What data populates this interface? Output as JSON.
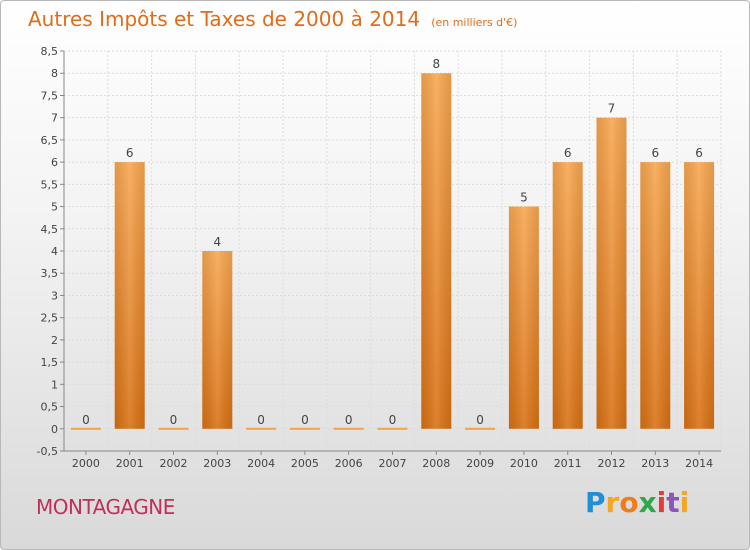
{
  "chart_data": {
    "type": "bar",
    "title": "Autres Impôts et Taxes de 2000 à 2014",
    "subtitle": "(en milliers d'€)",
    "categories": [
      "2000",
      "2001",
      "2002",
      "2003",
      "2004",
      "2005",
      "2006",
      "2007",
      "2008",
      "2009",
      "2010",
      "2011",
      "2012",
      "2013",
      "2014"
    ],
    "values": [
      0,
      6,
      0,
      4,
      0,
      0,
      0,
      0,
      8,
      0,
      5,
      6,
      7,
      6,
      6
    ],
    "ylim": [
      -0.5,
      8.5
    ],
    "yticks": [
      "-0,5",
      "0",
      "0,5",
      "1",
      "1,5",
      "2",
      "2,5",
      "3",
      "3,5",
      "4",
      "4,5",
      "5",
      "5,5",
      "6",
      "6,5",
      "7",
      "7,5",
      "8",
      "8,5"
    ],
    "grid": true,
    "bar_color": "#f28a1e"
  },
  "commune": "MONTAGAGNE",
  "logo": {
    "letters": [
      "P",
      "r",
      "o",
      "x",
      "i",
      "t",
      "i"
    ],
    "colors": [
      "#1f8fd6",
      "#f5a623",
      "#f07c1a",
      "#2ea84a",
      "#e43a3a",
      "#8a56b8",
      "#f5a623"
    ]
  }
}
